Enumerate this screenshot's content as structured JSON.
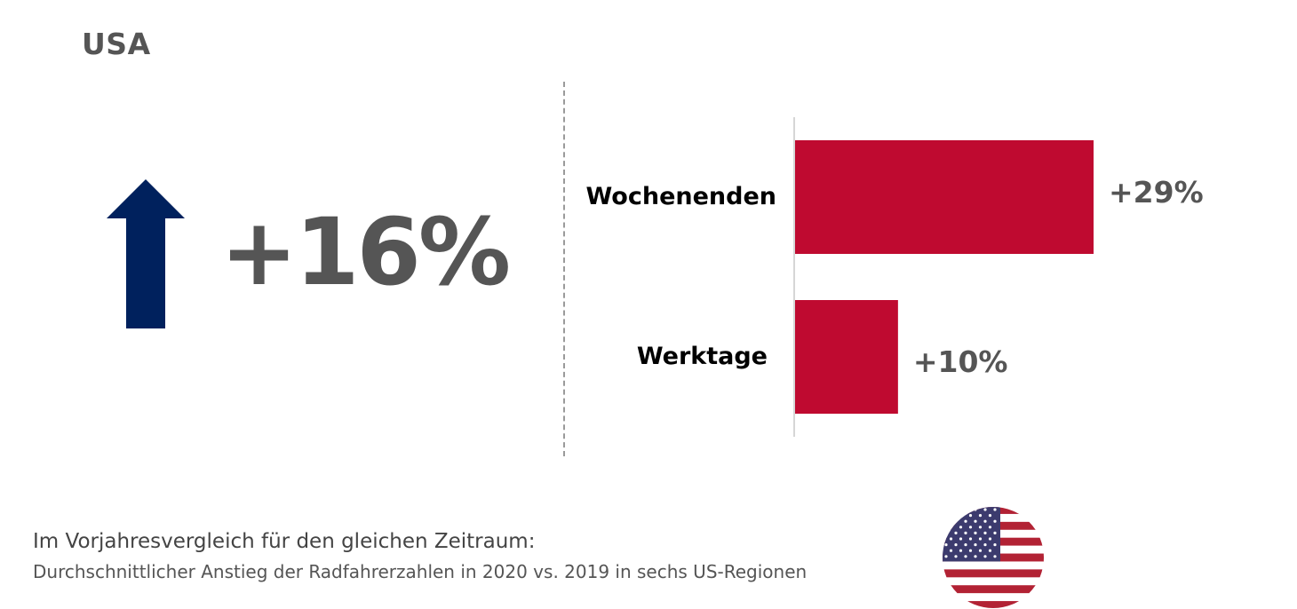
{
  "country": "USA",
  "headline_change": "+16%",
  "icons": {
    "arrow": "up-arrow-icon",
    "flag": "us-flag-icon"
  },
  "colors": {
    "arrow": "#00215d",
    "bars": "#bf0a30",
    "text": "#555555"
  },
  "footnote": {
    "title": "Im Vorjahresvergleich für den gleichen Zeitraum:",
    "subtitle": "Durchschnittlicher Anstieg der Radfahrerzahlen in 2020 vs. 2019 in sechs US-Regionen"
  },
  "chart_data": {
    "type": "bar",
    "orientation": "horizontal",
    "categories": [
      "Wochenenden",
      "Werktage"
    ],
    "values": [
      29,
      10
    ],
    "value_labels": [
      "+29%",
      "+10%"
    ],
    "xlim": [
      0,
      29
    ],
    "grid": false
  }
}
